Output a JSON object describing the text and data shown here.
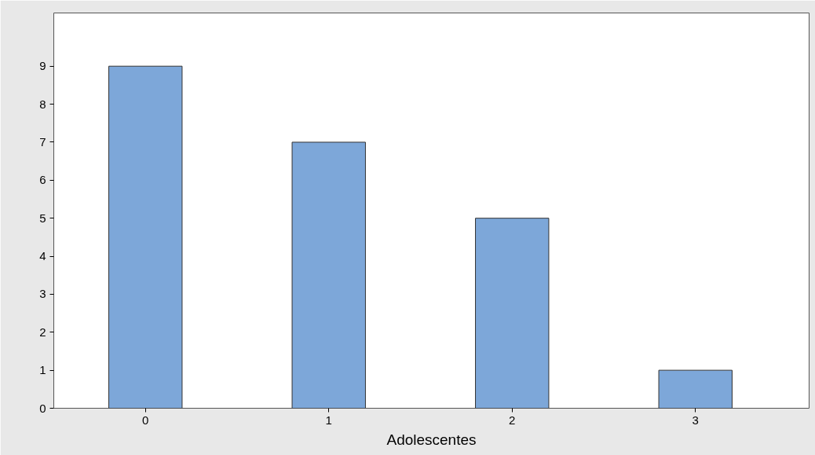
{
  "chart_data": {
    "type": "bar",
    "xlabel": "Adolescentes",
    "categories": [
      "0",
      "1",
      "2",
      "3"
    ],
    "values": [
      9,
      7,
      5,
      1
    ],
    "color": "#7da7d9",
    "ylim": [
      0,
      10.4
    ],
    "yticks": [
      0,
      1,
      2,
      3,
      4,
      5,
      6,
      7,
      8,
      9
    ],
    "grid": false
  }
}
